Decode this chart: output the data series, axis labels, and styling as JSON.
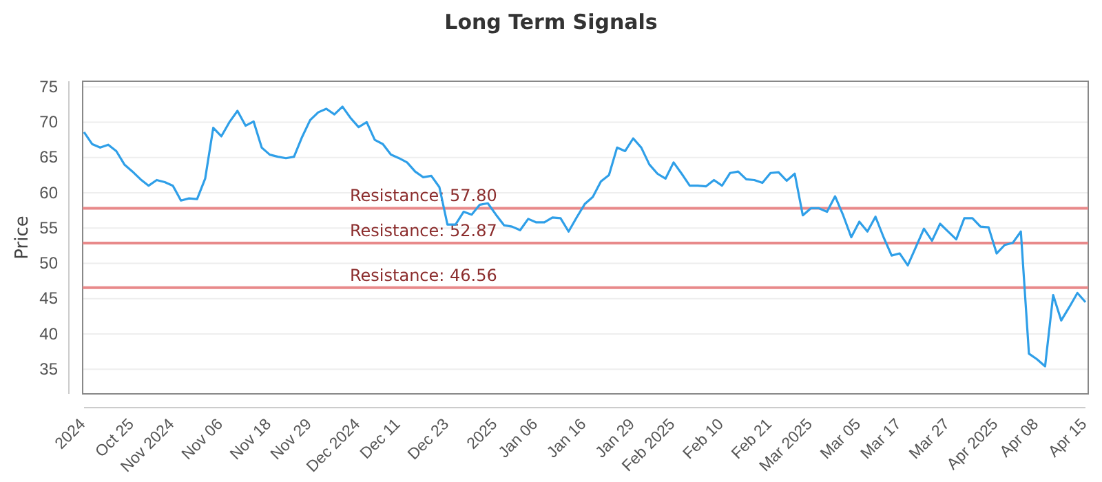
{
  "chart_data": {
    "type": "line",
    "title": "Long Term Signals",
    "ylabel": "Price",
    "categories": [
      "2024",
      null,
      null,
      null,
      null,
      null,
      "Oct 25",
      null,
      null,
      null,
      null,
      "Nov 2024",
      null,
      null,
      null,
      null,
      null,
      "Nov 06",
      null,
      null,
      null,
      null,
      null,
      "Nov 18",
      null,
      null,
      null,
      null,
      "Nov 29",
      null,
      null,
      null,
      null,
      null,
      "Dec 2024",
      null,
      null,
      null,
      null,
      "Dec 11",
      null,
      null,
      null,
      null,
      null,
      "Dec 23",
      null,
      null,
      null,
      null,
      null,
      "2025",
      null,
      null,
      null,
      null,
      "Jan 06",
      null,
      null,
      null,
      null,
      null,
      "Jan 16",
      null,
      null,
      null,
      null,
      null,
      "Jan 29",
      null,
      null,
      null,
      null,
      "Feb 2025",
      null,
      null,
      null,
      null,
      null,
      "Feb 10",
      null,
      null,
      null,
      null,
      null,
      "Feb 21",
      null,
      null,
      null,
      null,
      "Mar 2025",
      null,
      null,
      null,
      null,
      null,
      "Mar 05",
      null,
      null,
      null,
      null,
      "Mar 17",
      null,
      null,
      null,
      null,
      null,
      "Mar 27",
      null,
      null,
      null,
      null,
      null,
      "Apr 2025",
      null,
      null,
      null,
      null,
      "Apr 08",
      null,
      null,
      null,
      null,
      null,
      "Apr 15"
    ],
    "series": [
      {
        "color": "#2f9fe8",
        "values": [
          68.6,
          66.9,
          66.4,
          66.8,
          65.9,
          64,
          63,
          61.9,
          61,
          61.8,
          61.5,
          61,
          58.9,
          59.2,
          59.1,
          62,
          69.2,
          68,
          70,
          71.6,
          69.5,
          70.1,
          66.4,
          65.4,
          65.1,
          64.9,
          65.1,
          67.9,
          70.3,
          71.4,
          71.9,
          71.1,
          72.2,
          70.6,
          69.3,
          70,
          67.5,
          66.9,
          65.4,
          64.9,
          64.3,
          63,
          62.2,
          62.4,
          60.8,
          55.5,
          55.5,
          57.3,
          56.9,
          58.3,
          58.5,
          56.9,
          55.4,
          55.2,
          54.7,
          56.3,
          55.8,
          55.8,
          56.5,
          56.4,
          54.5,
          56.5,
          58.4,
          59.4,
          61.6,
          62.5,
          66.4,
          65.9,
          67.7,
          66.4,
          64,
          62.7,
          62,
          64.3,
          62.7,
          61,
          61,
          60.9,
          61.8,
          61,
          62.8,
          63,
          61.9,
          61.8,
          61.4,
          62.8,
          62.9,
          61.7,
          62.7,
          56.8,
          57.8,
          57.8,
          57.3,
          59.5,
          56.8,
          53.7,
          55.9,
          54.5,
          56.6,
          53.7,
          51.1,
          51.4,
          49.7,
          52.3,
          54.9,
          53.2,
          55.6,
          54.5,
          53.4,
          56.4,
          56.4,
          55.2,
          55.1,
          51.4,
          52.6,
          52.9,
          54.5,
          37.2,
          36.4,
          35.4,
          45.5,
          41.9,
          43.8,
          45.8,
          44.5
        ]
      }
    ],
    "ylim": [
      31.5,
      75.8
    ],
    "yticks": [
      35,
      40,
      45,
      50,
      55,
      60,
      65,
      70,
      75
    ],
    "grid": "y",
    "marker": "none",
    "line_style": "solid",
    "ref_lines": [
      {
        "axis": "y",
        "value": 57.8,
        "label": "Resistance: 57.80",
        "color": "#e8898a"
      },
      {
        "axis": "y",
        "value": 52.87,
        "label": "Resistance: 52.87",
        "color": "#e8898a"
      },
      {
        "axis": "y",
        "value": 46.56,
        "label": "Resistance: 46.56",
        "color": "#e8898a"
      }
    ]
  }
}
